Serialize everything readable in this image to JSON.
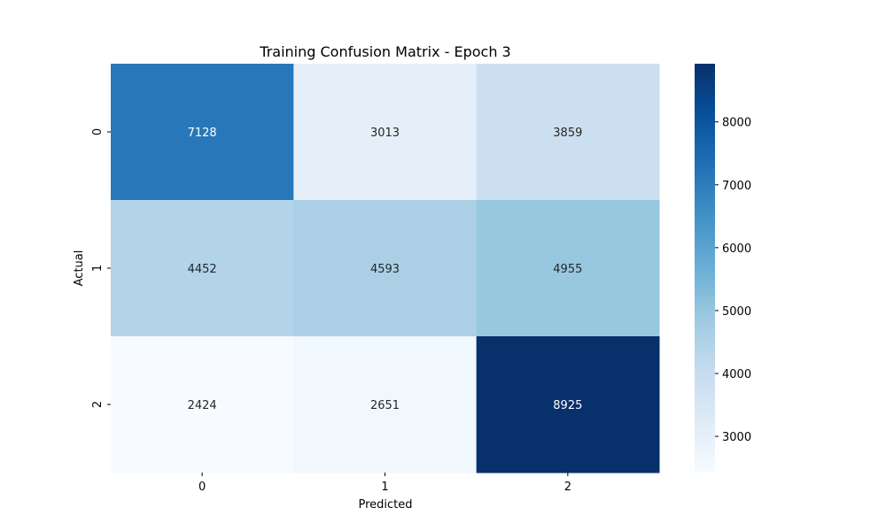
{
  "chart_data": {
    "type": "heatmap",
    "title": "Training Confusion Matrix - Epoch 3",
    "xlabel": "Predicted",
    "ylabel": "Actual",
    "x_categories": [
      "0",
      "1",
      "2"
    ],
    "y_categories": [
      "0",
      "1",
      "2"
    ],
    "values": [
      [
        7128,
        3013,
        3859
      ],
      [
        4452,
        4593,
        4955
      ],
      [
        2424,
        2651,
        8925
      ]
    ],
    "colormap": "Blues",
    "color_range": [
      2424,
      8925
    ],
    "colorbar_ticks": [
      3000,
      4000,
      5000,
      6000,
      7000,
      8000
    ],
    "colorbar_tick_labels": [
      "3000",
      "4000",
      "5000",
      "6000",
      "7000",
      "8000"
    ],
    "annotations": true,
    "grid": false
  }
}
